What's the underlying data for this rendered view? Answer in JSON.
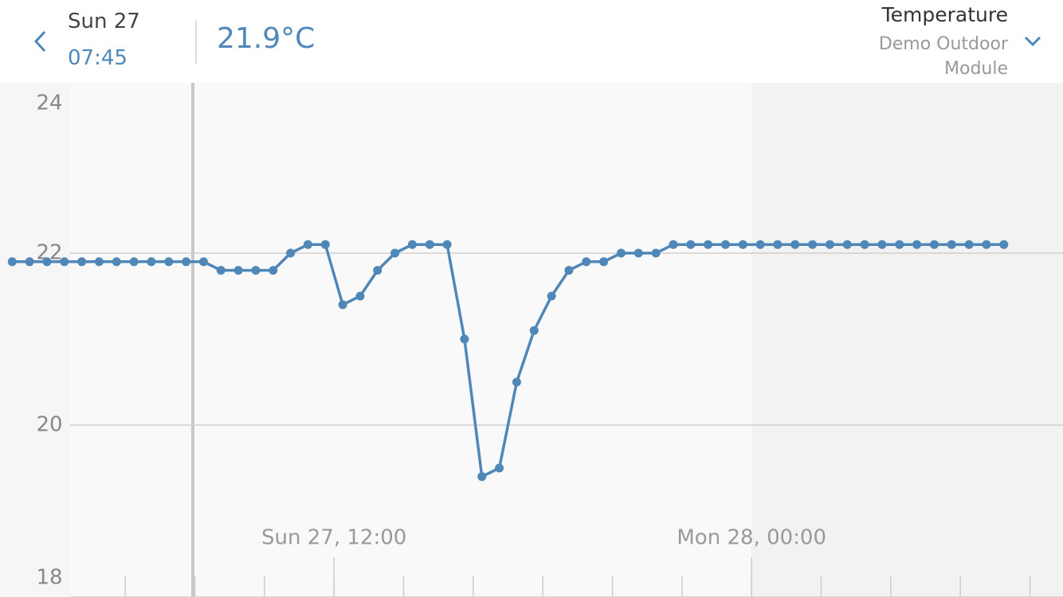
{
  "header": {
    "day": "Sun 27",
    "time": "07:45",
    "reading": "21.9°C",
    "metric": "Temperature",
    "module": "Demo Outdoor Module"
  },
  "chart_data": {
    "type": "line",
    "x": [
      2.75,
      3.25,
      3.75,
      4.25,
      4.75,
      5.25,
      5.75,
      6.25,
      6.75,
      7.25,
      7.75,
      8.25,
      8.75,
      9.25,
      9.75,
      10.25,
      10.75,
      11.25,
      11.75,
      12.25,
      12.75,
      13.25,
      13.75,
      14.25,
      14.75,
      15.25,
      15.75,
      16.25,
      16.75,
      17.25,
      17.75,
      18.25,
      18.75,
      19.25,
      19.75,
      20.25,
      20.75,
      21.25,
      21.75,
      22.25,
      22.75,
      23.25,
      23.75,
      24.25,
      24.75,
      25.25,
      25.75,
      26.25,
      26.75,
      27.25,
      27.75,
      28.25,
      28.75,
      29.25,
      29.75,
      30.25,
      30.75,
      31.25
    ],
    "series": [
      {
        "color": "#4f87b9",
        "values": [
          21.9,
          21.9,
          21.9,
          21.9,
          21.9,
          21.9,
          21.9,
          21.9,
          21.9,
          21.9,
          21.9,
          21.9,
          21.8,
          21.8,
          21.8,
          21.8,
          22.0,
          22.1,
          22.1,
          21.4,
          21.5,
          21.8,
          22.0,
          22.1,
          22.1,
          22.1,
          21.0,
          19.4,
          19.5,
          20.5,
          21.1,
          21.5,
          21.8,
          21.9,
          21.9,
          22.0,
          22.0,
          22.0,
          22.1,
          22.1,
          22.1,
          22.1,
          22.1,
          22.1,
          22.1,
          22.1,
          22.1,
          22.1,
          22.1,
          22.1,
          22.1,
          22.1,
          22.1,
          22.1,
          22.1,
          22.1,
          22.1,
          22.1
        ]
      }
    ],
    "xlim": [
      2.4,
      32.95
    ],
    "xticks": [
      {
        "value": 12,
        "label": "Sun 27, 12:00"
      },
      {
        "value": 24,
        "label": "Mon 28, 00:00"
      }
    ],
    "xminorticks": [
      6,
      8,
      10,
      12,
      14,
      16,
      18,
      20,
      22,
      24,
      26,
      28,
      30,
      32
    ],
    "ylim": [
      18,
      24
    ],
    "yticks": [
      18,
      20,
      22,
      24
    ],
    "grid": true
  }
}
